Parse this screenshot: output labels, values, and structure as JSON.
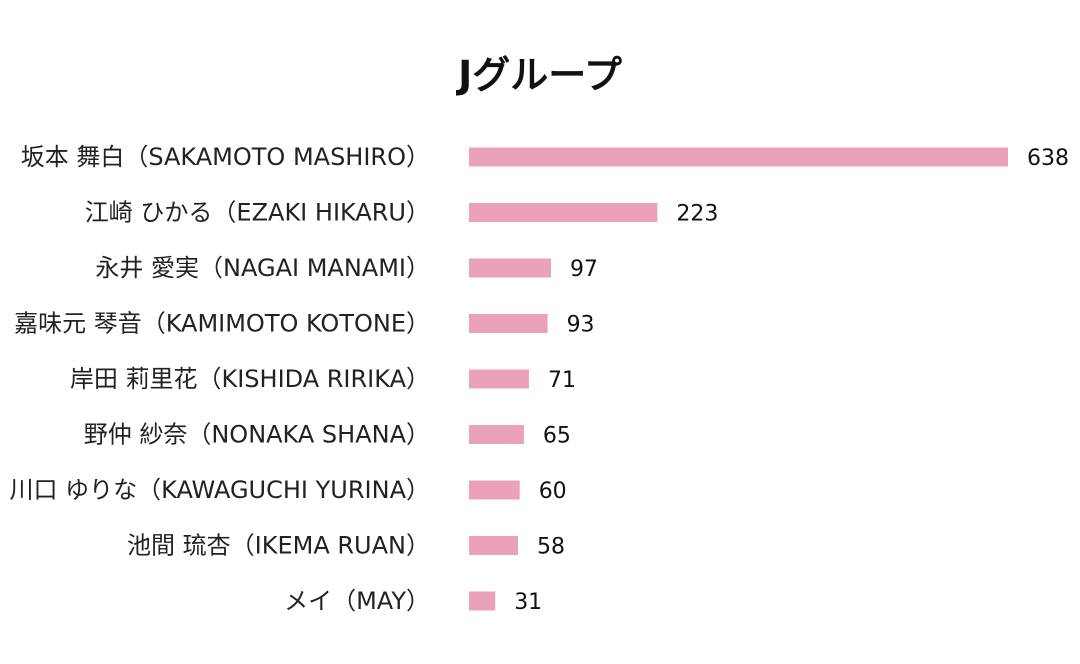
{
  "chart_data": {
    "type": "bar",
    "orientation": "horizontal",
    "title": "Jグループ",
    "categories": [
      "坂本 舞白（SAKAMOTO MASHIRO）",
      "江崎 ひかる（EZAKI HIKARU）",
      "永井 愛実（NAGAI MANAMI）",
      "嘉味元 琴音（KAMIMOTO KOTONE）",
      "岸田 莉里花（KISHIDA RIRIKA）",
      "野仲 紗奈（NONAKA SHANA）",
      "川口 ゆりな（KAWAGUCHI YURINA）",
      "池間 琉杏（IKEMA RUAN）",
      "メイ（MAY）"
    ],
    "values": [
      638,
      223,
      97,
      93,
      71,
      65,
      60,
      58,
      31
    ],
    "xlim": [
      0,
      638
    ],
    "grid": false,
    "legend": "none",
    "bar_color": "#EBA1B9"
  }
}
